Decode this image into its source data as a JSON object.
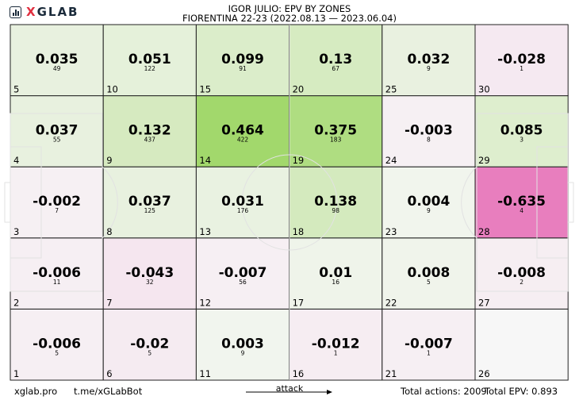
{
  "brand": {
    "x": "X",
    "rest": "GLAB",
    "icon": "bar-chart-logo-icon"
  },
  "header": {
    "title": "IGOR JULIO: EPV BY ZONES",
    "subtitle": "FIORENTINA 22-23 (2022.08.13 — 2023.06.04)"
  },
  "footer": {
    "site": "xglab.pro",
    "bot": "t.me/xGLabBot",
    "attack": "attack",
    "total_actions": "Total actions: 2009",
    "total_epv": "Total EPV: 0.893"
  },
  "colors": {
    "positive": "#5fbf00",
    "negative": "#e040a0",
    "neutral": "#f6f6f6",
    "line": "#222222",
    "pitch": "#e2e2e2"
  },
  "chart_data": {
    "type": "heatmap",
    "title": "IGOR JULIO: EPV BY ZONES",
    "subtitle": "FIORENTINA 22-23 (2022.08.13 — 2023.06.04)",
    "columns": 6,
    "rows": 5,
    "zones": [
      {
        "zone": 1,
        "epv": "-0.006",
        "count": "5"
      },
      {
        "zone": 2,
        "epv": "-0.006",
        "count": "11"
      },
      {
        "zone": 3,
        "epv": "-0.002",
        "count": "7"
      },
      {
        "zone": 4,
        "epv": "0.037",
        "count": "55"
      },
      {
        "zone": 5,
        "epv": "0.035",
        "count": "49"
      },
      {
        "zone": 6,
        "epv": "-0.02",
        "count": "5"
      },
      {
        "zone": 7,
        "epv": "-0.043",
        "count": "32"
      },
      {
        "zone": 8,
        "epv": "0.037",
        "count": "125"
      },
      {
        "zone": 9,
        "epv": "0.132",
        "count": "437"
      },
      {
        "zone": 10,
        "epv": "0.051",
        "count": "122"
      },
      {
        "zone": 11,
        "epv": "0.003",
        "count": "9"
      },
      {
        "zone": 12,
        "epv": "-0.007",
        "count": "56"
      },
      {
        "zone": 13,
        "epv": "0.031",
        "count": "176"
      },
      {
        "zone": 14,
        "epv": "0.464",
        "count": "422"
      },
      {
        "zone": 15,
        "epv": "0.099",
        "count": "91"
      },
      {
        "zone": 16,
        "epv": "-0.012",
        "count": "1"
      },
      {
        "zone": 17,
        "epv": "0.01",
        "count": "16"
      },
      {
        "zone": 18,
        "epv": "0.138",
        "count": "98"
      },
      {
        "zone": 19,
        "epv": "0.375",
        "count": "183"
      },
      {
        "zone": 20,
        "epv": "0.13",
        "count": "67"
      },
      {
        "zone": 21,
        "epv": "-0.007",
        "count": "1"
      },
      {
        "zone": 22,
        "epv": "0.008",
        "count": "5"
      },
      {
        "zone": 23,
        "epv": "0.004",
        "count": "9"
      },
      {
        "zone": 24,
        "epv": "-0.003",
        "count": "8"
      },
      {
        "zone": 25,
        "epv": "0.032",
        "count": "9"
      },
      {
        "zone": 26,
        "epv": "",
        "count": ""
      },
      {
        "zone": 27,
        "epv": "-0.008",
        "count": "2"
      },
      {
        "zone": 28,
        "epv": "-0.635",
        "count": "4"
      },
      {
        "zone": 29,
        "epv": "0.085",
        "count": "3"
      },
      {
        "zone": 30,
        "epv": "-0.028",
        "count": "1"
      }
    ]
  }
}
